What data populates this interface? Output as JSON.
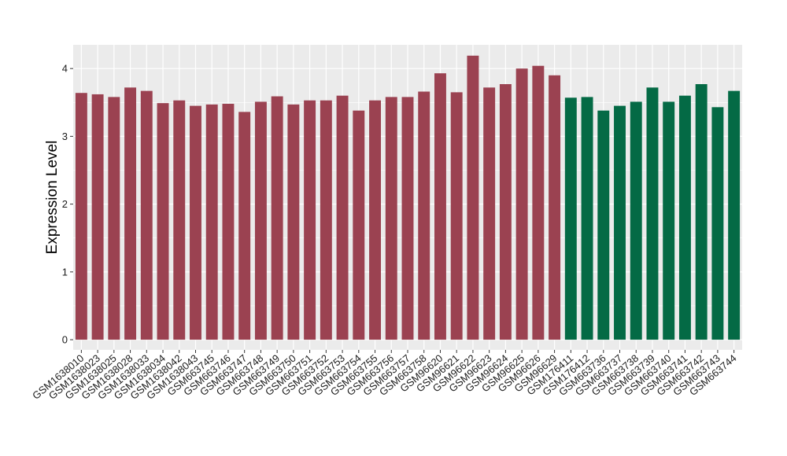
{
  "chart_data": {
    "type": "bar",
    "title": "",
    "xlabel": "",
    "ylabel": "Expression Level",
    "ylim": [
      -0.15,
      4.35
    ],
    "yticks": [
      0,
      1,
      2,
      3,
      4
    ],
    "grid": true,
    "background": "#ebebeb",
    "categories": [
      "GSM1638010",
      "GSM1638023",
      "GSM1638025",
      "GSM1638028",
      "GSM1638033",
      "GSM1638034",
      "GSM1638042",
      "GSM1638043",
      "GSM663745",
      "GSM663746",
      "GSM663747",
      "GSM663748",
      "GSM663749",
      "GSM663750",
      "GSM663751",
      "GSM663752",
      "GSM663753",
      "GSM663754",
      "GSM663755",
      "GSM663756",
      "GSM663757",
      "GSM663758",
      "GSM96620",
      "GSM96621",
      "GSM96622",
      "GSM96623",
      "GSM96624",
      "GSM96625",
      "GSM96626",
      "GSM96629",
      "GSM176411",
      "GSM176412",
      "GSM663736",
      "GSM663737",
      "GSM663738",
      "GSM663739",
      "GSM663740",
      "GSM663741",
      "GSM663742",
      "GSM663743",
      "GSM663744"
    ],
    "values": [
      3.64,
      3.62,
      3.58,
      3.72,
      3.67,
      3.49,
      3.53,
      3.45,
      3.47,
      3.48,
      3.36,
      3.51,
      3.59,
      3.47,
      3.53,
      3.53,
      3.6,
      3.38,
      3.53,
      3.58,
      3.58,
      3.66,
      3.93,
      3.65,
      4.19,
      3.72,
      3.77,
      4.0,
      4.04,
      3.9,
      3.57,
      3.58,
      3.38,
      3.45,
      3.51,
      3.72,
      3.51,
      3.6,
      3.77,
      3.43,
      3.67
    ],
    "colors": [
      "#9b4251",
      "#9b4251",
      "#9b4251",
      "#9b4251",
      "#9b4251",
      "#9b4251",
      "#9b4251",
      "#9b4251",
      "#9b4251",
      "#9b4251",
      "#9b4251",
      "#9b4251",
      "#9b4251",
      "#9b4251",
      "#9b4251",
      "#9b4251",
      "#9b4251",
      "#9b4251",
      "#9b4251",
      "#9b4251",
      "#9b4251",
      "#9b4251",
      "#9b4251",
      "#9b4251",
      "#9b4251",
      "#9b4251",
      "#9b4251",
      "#9b4251",
      "#9b4251",
      "#9b4251",
      "#046a45",
      "#046a45",
      "#046a45",
      "#046a45",
      "#046a45",
      "#046a45",
      "#046a45",
      "#046a45",
      "#046a45",
      "#046a45",
      "#046a45"
    ]
  }
}
